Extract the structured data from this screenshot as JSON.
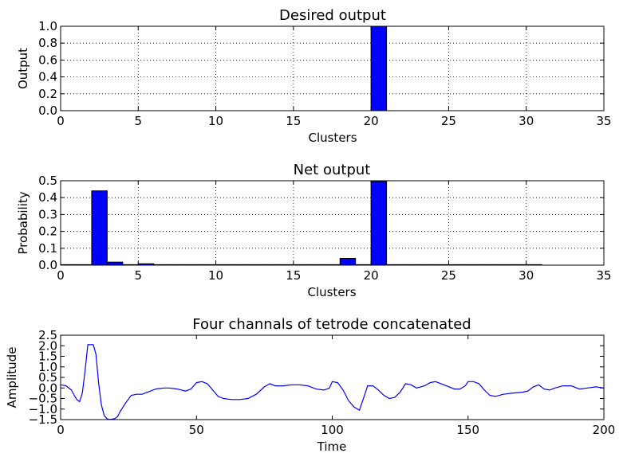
{
  "chart_data": [
    {
      "type": "bar",
      "title": "Desired output",
      "xlabel": "Clusters",
      "ylabel": "Output",
      "xlim": [
        0,
        35
      ],
      "ylim": [
        0,
        1.0
      ],
      "xticks": [
        0,
        5,
        10,
        15,
        20,
        25,
        30,
        35
      ],
      "yticks": [
        "0.0",
        "0.2",
        "0.4",
        "0.6",
        "0.8",
        "1.0"
      ],
      "grid": true,
      "categories": [
        0,
        1,
        2,
        3,
        4,
        5,
        6,
        7,
        8,
        9,
        10,
        11,
        12,
        13,
        14,
        15,
        16,
        17,
        18,
        19,
        20,
        21,
        22,
        23,
        24,
        25,
        26,
        27,
        28,
        29,
        30
      ],
      "values": [
        0,
        0,
        0,
        0,
        0,
        0,
        0,
        0,
        0,
        0,
        0,
        0,
        0,
        0,
        0,
        0,
        0,
        0,
        0,
        0,
        1.0,
        0,
        0,
        0,
        0,
        0,
        0,
        0,
        0,
        0,
        0
      ]
    },
    {
      "type": "bar",
      "title": "Net output",
      "xlabel": "Clusters",
      "ylabel": "Probability",
      "xlim": [
        0,
        35
      ],
      "ylim": [
        0,
        0.5
      ],
      "xticks": [
        0,
        5,
        10,
        15,
        20,
        25,
        30,
        35
      ],
      "yticks": [
        "0.0",
        "0.1",
        "0.2",
        "0.3",
        "0.4",
        "0.5"
      ],
      "grid": true,
      "categories": [
        0,
        1,
        2,
        3,
        4,
        5,
        6,
        7,
        8,
        9,
        10,
        11,
        12,
        13,
        14,
        15,
        16,
        17,
        18,
        19,
        20,
        21,
        22,
        23,
        24,
        25,
        26,
        27,
        28,
        29,
        30
      ],
      "values": [
        0.003,
        0.003,
        0.44,
        0.018,
        0.003,
        0.008,
        0.003,
        0.003,
        0.003,
        0.003,
        0.003,
        0.003,
        0.003,
        0.003,
        0.003,
        0.003,
        0.003,
        0.003,
        0.04,
        0.003,
        0.495,
        0.003,
        0.003,
        0.003,
        0.003,
        0.003,
        0.003,
        0.003,
        0.003,
        0.003,
        0.003
      ]
    },
    {
      "type": "line",
      "title": "Four channals of tetrode concatenated",
      "xlabel": "Time",
      "ylabel": "Amplitude",
      "xlim": [
        0,
        200
      ],
      "ylim": [
        -1.5,
        2.5
      ],
      "xticks": [
        0,
        50,
        100,
        150,
        200
      ],
      "yticks": [
        "−1.5",
        "−1.0",
        "−0.5",
        "0.0",
        "0.5",
        "1.0",
        "1.5",
        "2.0",
        "2.5"
      ],
      "ytick_values": [
        -1.5,
        -1.0,
        -0.5,
        0.0,
        0.5,
        1.0,
        1.5,
        2.0,
        2.5
      ],
      "grid": false,
      "series": [
        {
          "points": [
            [
              0,
              0.15
            ],
            [
              2,
              0.1
            ],
            [
              4,
              -0.1
            ],
            [
              5,
              -0.35
            ],
            [
              6,
              -0.55
            ],
            [
              7,
              -0.65
            ],
            [
              8,
              -0.25
            ],
            [
              9,
              0.8
            ],
            [
              10,
              2.05
            ],
            [
              11,
              2.05
            ],
            [
              12,
              2.05
            ],
            [
              13,
              1.6
            ],
            [
              14,
              0.2
            ],
            [
              15,
              -0.8
            ],
            [
              16,
              -1.3
            ],
            [
              17,
              -1.45
            ],
            [
              18,
              -1.5
            ],
            [
              20,
              -1.45
            ],
            [
              21,
              -1.35
            ],
            [
              22,
              -1.1
            ],
            [
              24,
              -0.7
            ],
            [
              26,
              -0.35
            ],
            [
              28,
              -0.3
            ],
            [
              30,
              -0.3
            ],
            [
              32,
              -0.2
            ],
            [
              35,
              -0.05
            ],
            [
              38,
              0.0
            ],
            [
              40,
              0.0
            ],
            [
              43,
              -0.05
            ],
            [
              46,
              -0.15
            ],
            [
              48,
              -0.05
            ],
            [
              50,
              0.25
            ],
            [
              52,
              0.3
            ],
            [
              54,
              0.2
            ],
            [
              56,
              -0.1
            ],
            [
              58,
              -0.4
            ],
            [
              60,
              -0.5
            ],
            [
              63,
              -0.55
            ],
            [
              66,
              -0.55
            ],
            [
              69,
              -0.5
            ],
            [
              72,
              -0.3
            ],
            [
              75,
              0.05
            ],
            [
              77,
              0.2
            ],
            [
              79,
              0.1
            ],
            [
              82,
              0.1
            ],
            [
              85,
              0.15
            ],
            [
              88,
              0.15
            ],
            [
              91,
              0.1
            ],
            [
              94,
              -0.05
            ],
            [
              97,
              -0.1
            ],
            [
              99,
              0.0
            ],
            [
              100,
              0.3
            ],
            [
              102,
              0.25
            ],
            [
              104,
              -0.1
            ],
            [
              106,
              -0.6
            ],
            [
              108,
              -0.9
            ],
            [
              110,
              -1.05
            ],
            [
              112,
              -0.3
            ],
            [
              113,
              0.1
            ],
            [
              115,
              0.1
            ],
            [
              117,
              -0.1
            ],
            [
              119,
              -0.35
            ],
            [
              121,
              -0.5
            ],
            [
              123,
              -0.45
            ],
            [
              125,
              -0.2
            ],
            [
              127,
              0.2
            ],
            [
              129,
              0.15
            ],
            [
              131,
              0.0
            ],
            [
              134,
              0.1
            ],
            [
              136,
              0.25
            ],
            [
              138,
              0.3
            ],
            [
              140,
              0.2
            ],
            [
              142,
              0.1
            ],
            [
              145,
              -0.05
            ],
            [
              147,
              -0.05
            ],
            [
              149,
              0.1
            ],
            [
              150,
              0.3
            ],
            [
              152,
              0.3
            ],
            [
              154,
              0.2
            ],
            [
              156,
              -0.1
            ],
            [
              158,
              -0.35
            ],
            [
              160,
              -0.4
            ],
            [
              163,
              -0.3
            ],
            [
              166,
              -0.25
            ],
            [
              170,
              -0.2
            ],
            [
              172,
              -0.15
            ],
            [
              174,
              0.05
            ],
            [
              176,
              0.15
            ],
            [
              178,
              -0.05
            ],
            [
              180,
              -0.1
            ],
            [
              182,
              0.0
            ],
            [
              185,
              0.1
            ],
            [
              188,
              0.1
            ],
            [
              191,
              -0.05
            ],
            [
              194,
              0.0
            ],
            [
              197,
              0.05
            ],
            [
              200,
              0.0
            ]
          ]
        }
      ]
    }
  ]
}
